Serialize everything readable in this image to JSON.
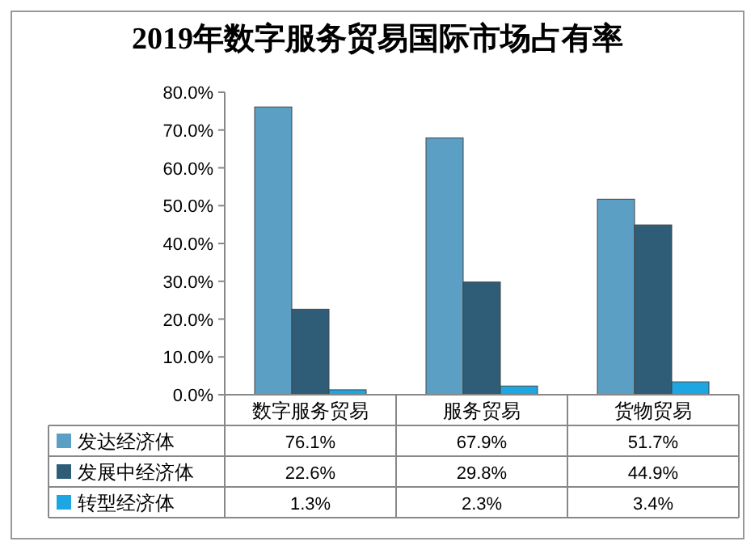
{
  "chart_data": {
    "type": "bar",
    "title": "2019年数字服务贸易国际市场占有率",
    "categories": [
      "数字服务贸易",
      "服务贸易",
      "货物贸易"
    ],
    "series": [
      {
        "name": "发达经济体",
        "color": "#5b9fc4",
        "values": [
          76.1,
          67.9,
          51.7
        ],
        "value_labels": [
          "76.1%",
          "67.9%",
          "51.7%"
        ]
      },
      {
        "name": "发展中经济体",
        "color": "#2f5d78",
        "values": [
          22.6,
          29.8,
          44.9
        ],
        "value_labels": [
          "22.6%",
          "29.8%",
          "44.9%"
        ]
      },
      {
        "name": "转型经济体",
        "color": "#1ea6e2",
        "values": [
          1.3,
          2.3,
          3.4
        ],
        "value_labels": [
          "1.3%",
          "2.3%",
          "3.4%"
        ]
      }
    ],
    "ylim": [
      0,
      80
    ],
    "yticks": [
      {
        "value": 0,
        "label": "0.0%"
      },
      {
        "value": 10,
        "label": "10.0%"
      },
      {
        "value": 20,
        "label": "20.0%"
      },
      {
        "value": 30,
        "label": "30.0%"
      },
      {
        "value": 40,
        "label": "40.0%"
      },
      {
        "value": 50,
        "label": "50.0%"
      },
      {
        "value": 60,
        "label": "60.0%"
      },
      {
        "value": 70,
        "label": "70.0%"
      },
      {
        "value": 80,
        "label": "80.0%"
      }
    ],
    "legend": "bottom"
  }
}
